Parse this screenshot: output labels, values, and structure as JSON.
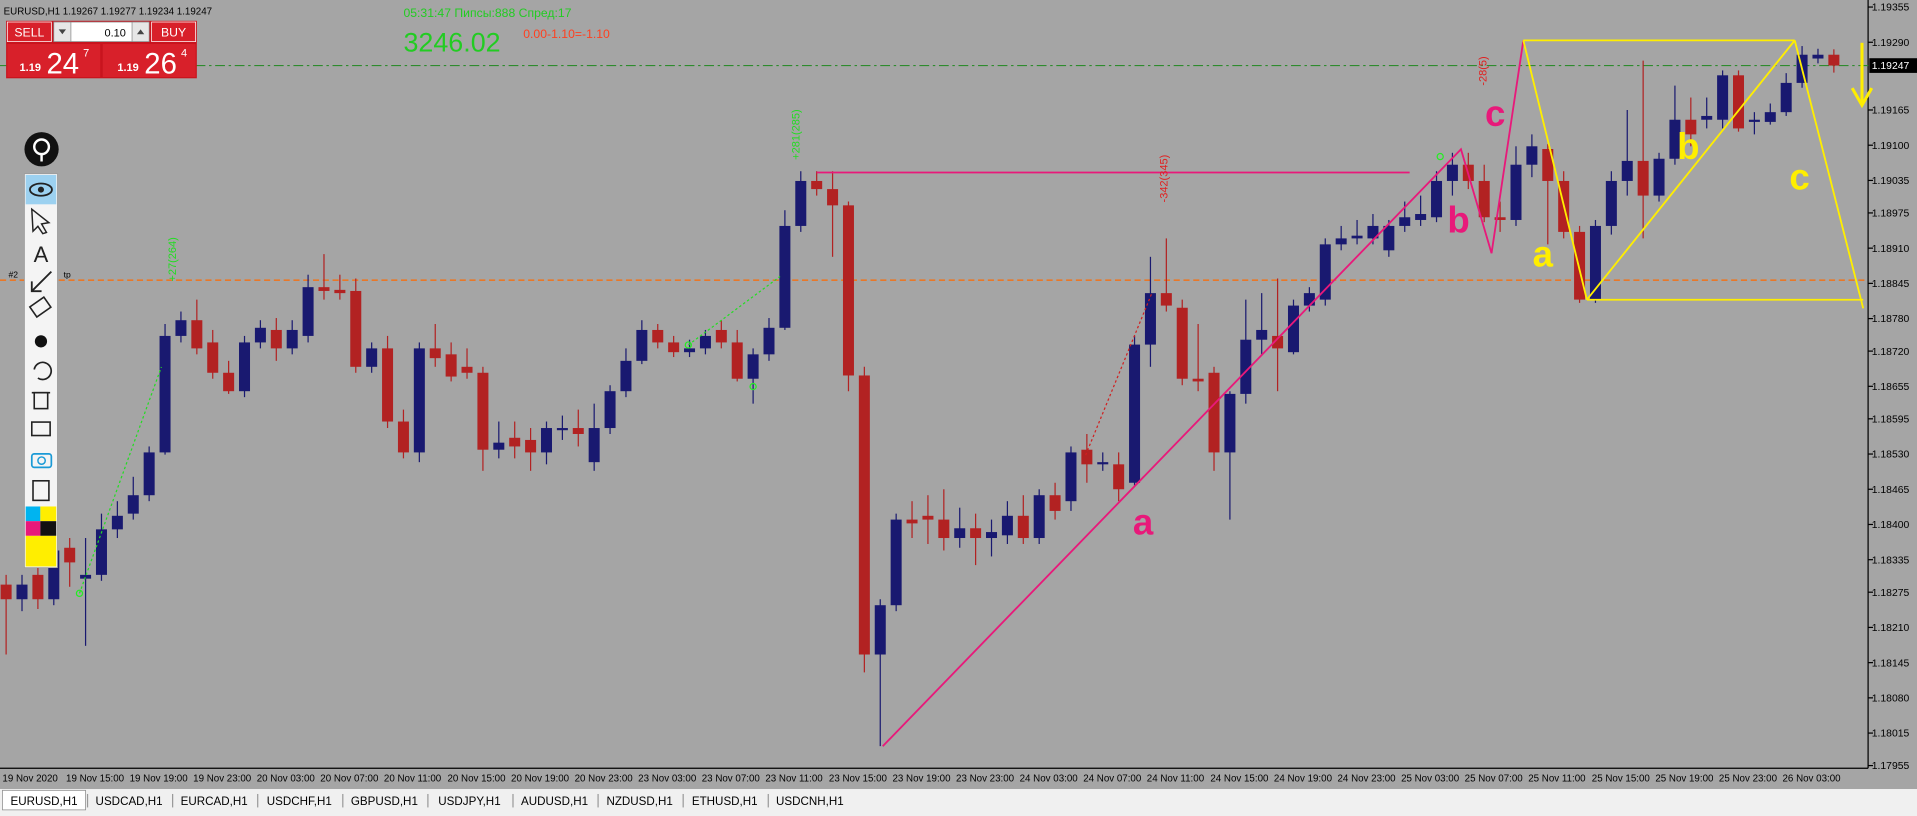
{
  "window": {
    "symbol_info": "EURUSD,H1  1.19267 1.19277 1.19234 1.19247"
  },
  "trade_panel": {
    "sell": "SELL",
    "buy": "BUY",
    "lot": "0.10",
    "bid_big": "1.19",
    "bid_pips": "24",
    "bid_point": "7",
    "ask_big": "1.19",
    "ask_pips": "26",
    "ask_point": "4"
  },
  "info": {
    "timer": "05:31:47 Пипсы:888 Спред:17",
    "balance": "3246.02",
    "profit": "0.00-1.10=-1.10"
  },
  "chart_data": {
    "type": "candlestick",
    "categories": [
      "19 Nov 2020",
      null,
      null,
      null,
      "19 Nov 15:00",
      null,
      null,
      null,
      "19 Nov 19:00",
      null,
      null,
      null,
      "19 Nov 23:00",
      null,
      null,
      null,
      "20 Nov 03:00",
      null,
      null,
      null,
      "20 Nov 07:00",
      null,
      null,
      null,
      "20 Nov 11:00",
      null,
      null,
      null,
      "20 Nov 15:00",
      null,
      null,
      null,
      "20 Nov 19:00",
      null,
      null,
      null,
      "20 Nov 23:00",
      null,
      null,
      null,
      "23 Nov 03:00",
      null,
      null,
      null,
      "23 Nov 07:00",
      null,
      null,
      null,
      "23 Nov 11:00",
      null,
      null,
      null,
      "23 Nov 15:00",
      null,
      null,
      null,
      "23 Nov 19:00",
      null,
      null,
      null,
      "23 Nov 23:00",
      null,
      null,
      null,
      "24 Nov 03:00",
      null,
      null,
      null,
      "24 Nov 07:00",
      null,
      null,
      null,
      "24 Nov 11:00",
      null,
      null,
      null,
      "24 Nov 15:00",
      null,
      null,
      null,
      "24 Nov 19:00",
      null,
      null,
      null,
      "24 Nov 23:00",
      null,
      null,
      null,
      "25 Nov 03:00",
      null,
      null,
      null,
      "25 Nov 07:00",
      null,
      null,
      null,
      "25 Nov 11:00",
      null,
      null,
      null,
      "25 Nov 15:00",
      null,
      null,
      null,
      "25 Nov 19:00",
      null,
      null,
      null,
      "25 Nov 23:00",
      null,
      null,
      null,
      "26 Nov 03:00",
      null,
      null,
      null
    ],
    "ohlc": [
      [
        1.18289,
        1.18307,
        1.1816,
        1.18262
      ],
      [
        1.18262,
        1.18307,
        1.1824,
        1.18289
      ],
      [
        1.18307,
        1.18341,
        1.18244,
        1.18262
      ],
      [
        1.18262,
        1.18375,
        1.18251,
        1.18352
      ],
      [
        1.18357,
        1.18375,
        1.18285,
        1.1833
      ],
      [
        1.183,
        1.18375,
        1.18176,
        1.18307
      ],
      [
        1.18307,
        1.1842,
        1.18296,
        1.18391
      ],
      [
        1.18391,
        1.18443,
        1.18375,
        1.18416
      ],
      [
        1.1842,
        1.18488,
        1.18409,
        1.18454
      ],
      [
        1.18454,
        1.18544,
        1.18443,
        1.18533
      ],
      [
        1.18533,
        1.1877,
        1.18529,
        1.18748
      ],
      [
        1.18748,
        1.18793,
        1.18736,
        1.18777
      ],
      [
        1.18777,
        1.18815,
        1.18714,
        1.18725
      ],
      [
        1.18736,
        1.18759,
        1.18669,
        1.1868
      ],
      [
        1.1868,
        1.18702,
        1.18641,
        1.18646
      ],
      [
        1.18646,
        1.18748,
        1.18635,
        1.18736
      ],
      [
        1.18736,
        1.18777,
        1.18725,
        1.18763
      ],
      [
        1.18759,
        1.18781,
        1.18702,
        1.18725
      ],
      [
        1.18725,
        1.18777,
        1.18714,
        1.18759
      ],
      [
        1.18748,
        1.18861,
        1.18736,
        1.18838
      ],
      [
        1.18838,
        1.18899,
        1.18815,
        1.18831
      ],
      [
        1.18833,
        1.18861,
        1.18815,
        1.18827
      ],
      [
        1.18831,
        1.18854,
        1.1868,
        1.18691
      ],
      [
        1.18691,
        1.18736,
        1.1868,
        1.18725
      ],
      [
        1.18725,
        1.18748,
        1.18578,
        1.1859
      ],
      [
        1.1859,
        1.18612,
        1.18522,
        1.18533
      ],
      [
        1.18533,
        1.18736,
        1.18515,
        1.18725
      ],
      [
        1.18725,
        1.1877,
        1.18691,
        1.18707
      ],
      [
        1.18714,
        1.18736,
        1.18664,
        1.18673
      ],
      [
        1.18691,
        1.18725,
        1.18669,
        1.1868
      ],
      [
        1.1868,
        1.18691,
        1.18499,
        1.18538
      ],
      [
        1.18538,
        1.1859,
        1.18522,
        1.18551
      ],
      [
        1.1856,
        1.1859,
        1.18522,
        1.18544
      ],
      [
        1.18556,
        1.18578,
        1.18499,
        1.18533
      ],
      [
        1.18533,
        1.1859,
        1.18511,
        1.18578
      ],
      [
        1.18574,
        1.18601,
        1.18556,
        1.18578
      ],
      [
        1.18578,
        1.18612,
        1.18544,
        1.18567
      ],
      [
        1.18515,
        1.18623,
        1.18499,
        1.18578
      ],
      [
        1.18578,
        1.18657,
        1.18567,
        1.18646
      ],
      [
        1.18646,
        1.18725,
        1.18635,
        1.18702
      ],
      [
        1.18702,
        1.18777,
        1.18696,
        1.18759
      ],
      [
        1.18759,
        1.1877,
        1.18725,
        1.18736
      ],
      [
        1.18736,
        1.18748,
        1.18709,
        1.18718
      ],
      [
        1.18718,
        1.18741,
        1.18709,
        1.18725
      ],
      [
        1.18725,
        1.18759,
        1.18714,
        1.18748
      ],
      [
        1.18759,
        1.18777,
        1.18725,
        1.18736
      ],
      [
        1.18736,
        1.18759,
        1.18664,
        1.18669
      ],
      [
        1.18669,
        1.18725,
        1.18623,
        1.18714
      ],
      [
        1.18714,
        1.18781,
        1.18702,
        1.18763
      ],
      [
        1.18763,
        1.1898,
        1.18759,
        1.18951
      ],
      [
        1.18951,
        1.19052,
        1.1894,
        1.19034
      ],
      [
        1.19034,
        1.19052,
        1.19007,
        1.19019
      ],
      [
        1.19019,
        1.19052,
        1.18894,
        1.18989
      ],
      [
        1.18989,
        1.18996,
        1.18646,
        1.18675
      ],
      [
        1.18675,
        1.18691,
        1.18127,
        1.1816
      ],
      [
        1.1816,
        1.18262,
        1.17991,
        1.18251
      ],
      [
        1.18251,
        1.1842,
        1.1824,
        1.18409
      ],
      [
        1.18409,
        1.18443,
        1.18375,
        1.18402
      ],
      [
        1.18416,
        1.18454,
        1.18364,
        1.18409
      ],
      [
        1.18409,
        1.18465,
        1.18352,
        1.18375
      ],
      [
        1.18375,
        1.18431,
        1.18357,
        1.18393
      ],
      [
        1.18393,
        1.1842,
        1.18325,
        1.18375
      ],
      [
        1.18375,
        1.18409,
        1.18341,
        1.18386
      ],
      [
        1.1838,
        1.18443,
        1.18364,
        1.18416
      ],
      [
        1.18416,
        1.18454,
        1.18364,
        1.18375
      ],
      [
        1.18375,
        1.18465,
        1.18364,
        1.18454
      ],
      [
        1.18454,
        1.18477,
        1.18409,
        1.18425
      ],
      [
        1.18443,
        1.18544,
        1.18425,
        1.18533
      ],
      [
        1.18538,
        1.18567,
        1.18477,
        1.18511
      ],
      [
        1.18511,
        1.18533,
        1.18499,
        1.18515
      ],
      [
        1.18511,
        1.18533,
        1.18443,
        1.18465
      ],
      [
        1.18477,
        1.18748,
        1.1847,
        1.18732
      ],
      [
        1.18732,
        1.18894,
        1.18691,
        1.18827
      ],
      [
        1.18827,
        1.18928,
        1.18793,
        1.18804
      ],
      [
        1.188,
        1.18815,
        1.18657,
        1.18669
      ],
      [
        1.18669,
        1.1877,
        1.18646,
        1.18664
      ],
      [
        1.1868,
        1.18691,
        1.18499,
        1.18533
      ],
      [
        1.18533,
        1.18646,
        1.18409,
        1.18641
      ],
      [
        1.18641,
        1.18815,
        1.18623,
        1.18741
      ],
      [
        1.18741,
        1.18827,
        1.18714,
        1.18759
      ],
      [
        1.18748,
        1.18854,
        1.18646,
        1.18725
      ],
      [
        1.18718,
        1.18815,
        1.18714,
        1.18804
      ],
      [
        1.18804,
        1.18838,
        1.18793,
        1.18827
      ],
      [
        1.18815,
        1.18928,
        1.18804,
        1.18917
      ],
      [
        1.18917,
        1.18951,
        1.18906,
        1.18928
      ],
      [
        1.18928,
        1.18962,
        1.18917,
        1.18933
      ],
      [
        1.18928,
        1.18973,
        1.18917,
        1.18951
      ],
      [
        1.18906,
        1.18962,
        1.18894,
        1.18951
      ],
      [
        1.18951,
        1.18996,
        1.1894,
        1.18967
      ],
      [
        1.18962,
        1.19007,
        1.18951,
        1.18973
      ],
      [
        1.18967,
        1.19052,
        1.18958,
        1.19034
      ],
      [
        1.19034,
        1.19086,
        1.19007,
        1.19064
      ],
      [
        1.19064,
        1.19086,
        1.19019,
        1.19034
      ],
      [
        1.19034,
        1.19064,
        1.18958,
        1.18967
      ],
      [
        1.18967,
        1.18996,
        1.1894,
        1.18962
      ],
      [
        1.18962,
        1.19098,
        1.18951,
        1.19064
      ],
      [
        1.19064,
        1.1912,
        1.19041,
        1.19098
      ],
      [
        1.19093,
        1.19102,
        1.18917,
        1.19034
      ],
      [
        1.19034,
        1.19052,
        1.18928,
        1.1894
      ],
      [
        1.1894,
        1.18951,
        1.18809,
        1.18815
      ],
      [
        1.18815,
        1.18962,
        1.18809,
        1.18951
      ],
      [
        1.18951,
        1.19052,
        1.18935,
        1.19034
      ],
      [
        1.19034,
        1.19165,
        1.19007,
        1.19071
      ],
      [
        1.19071,
        1.19256,
        1.18928,
        1.19007
      ],
      [
        1.19007,
        1.19086,
        1.18996,
        1.19075
      ],
      [
        1.19075,
        1.1921,
        1.19064,
        1.19147
      ],
      [
        1.19147,
        1.19188,
        1.19098,
        1.1912
      ],
      [
        1.19147,
        1.19188,
        1.19131,
        1.19154
      ],
      [
        1.19147,
        1.19238,
        1.19131,
        1.19229
      ],
      [
        1.19229,
        1.19238,
        1.19125,
        1.19131
      ],
      [
        1.19143,
        1.19161,
        1.1912,
        1.19147
      ],
      [
        1.19143,
        1.19177,
        1.19138,
        1.19161
      ],
      [
        1.19161,
        1.19233,
        1.19154,
        1.19215
      ],
      [
        1.19215,
        1.19283,
        1.19206,
        1.19267
      ],
      [
        1.1926,
        1.19278,
        1.19251,
        1.19267
      ],
      [
        1.19267,
        1.19277,
        1.19234,
        1.19247
      ]
    ],
    "colors": {
      "up": "#191970",
      "down": "#b22222"
    },
    "ylim": [
      1.1795,
      1.19368
    ],
    "yticks": [
      1.19355,
      {
        "value": 1.1929,
        "label": "1.19290"
      },
      1.19165,
      {
        "value": 1.191,
        "label": "1.19100"
      },
      1.19035,
      1.18975,
      {
        "value": 1.1891,
        "label": "1.18910"
      },
      1.18845,
      {
        "value": 1.1878,
        "label": "1.18780"
      },
      {
        "value": 1.1872,
        "label": "1.18720"
      },
      1.18655,
      1.18595,
      {
        "value": 1.1853,
        "label": "1.18530"
      },
      1.18465,
      {
        "value": 1.184,
        "label": "1.18400"
      },
      1.18335,
      1.18275,
      {
        "value": 1.1821,
        "label": "1.18210"
      },
      1.18145,
      {
        "value": 1.1808,
        "label": "1.18080"
      },
      1.18015,
      1.17955
    ],
    "current_price": 1.19247,
    "order_level": 1.18851,
    "order_label": "#2",
    "order_tp": "tp",
    "annotations": [
      "+27(264)",
      "+281(285)",
      "-342(345)",
      "-28(5)"
    ],
    "waves_pink": [
      "a",
      "b",
      "c"
    ],
    "waves_yellow": [
      "a",
      "b",
      "c"
    ]
  },
  "tabs": [
    "EURUSD,H1",
    "USDCAD,H1",
    "EURCAD,H1",
    "USDCHF,H1",
    "GBPUSD,H1",
    "USDJPY,H1",
    "AUDUSD,H1",
    "NZDUSD,H1",
    "ETHUSD,H1",
    "USDCNH,H1"
  ]
}
